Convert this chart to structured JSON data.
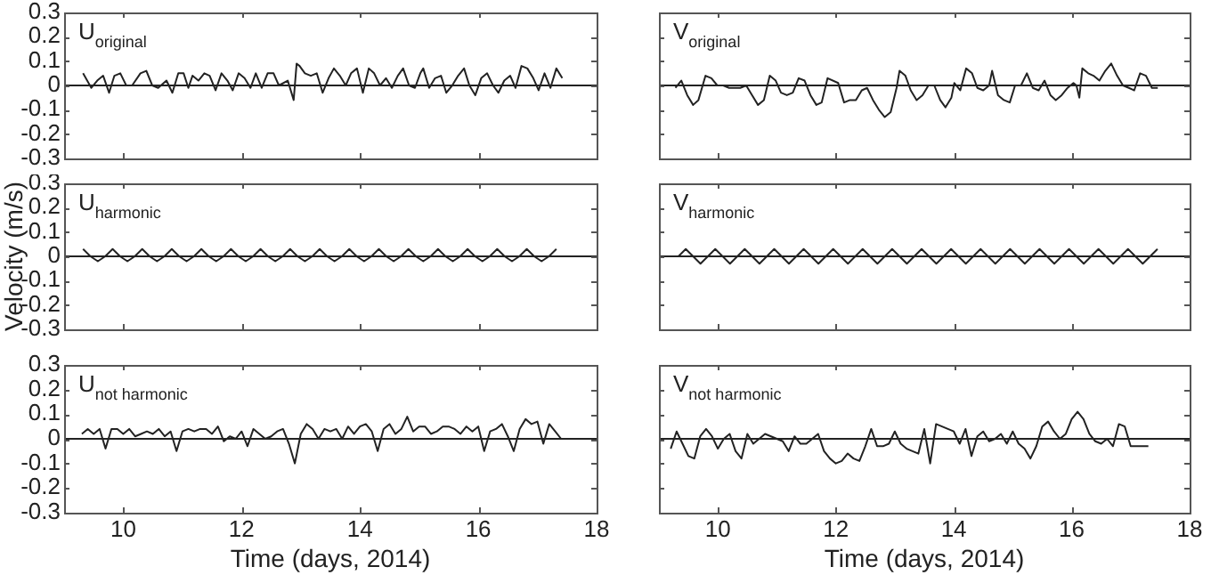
{
  "chart_data": [
    {
      "type": "line",
      "annotations": [
        "U$_{original}$"
      ],
      "tick_labels": "y",
      "xlim": [
        9,
        18
      ],
      "xticks": [
        10,
        12,
        14,
        16,
        18
      ],
      "ylim": [
        -0.3,
        0.3
      ],
      "yticks": [
        -0.3,
        -0.2,
        -0.1,
        0,
        0.1,
        0.2,
        0.3
      ],
      "ref_lines": [
        {
          "axis": "y",
          "value": 0
        }
      ],
      "x": [
        9.32,
        9.46,
        9.56,
        9.66,
        9.76,
        9.85,
        9.95,
        10.05,
        10.15,
        10.29,
        10.39,
        10.49,
        10.59,
        10.73,
        10.83,
        10.93,
        11.02,
        11.1,
        11.17,
        11.27,
        11.37,
        11.46,
        11.56,
        11.66,
        11.76,
        11.85,
        11.95,
        12.05,
        12.15,
        12.24,
        12.34,
        12.44,
        12.54,
        12.63,
        12.78,
        12.88,
        12.93,
        12.98,
        13.07,
        13.17,
        13.27,
        13.37,
        13.47,
        13.56,
        13.66,
        13.76,
        13.85,
        13.95,
        14.05,
        14.15,
        14.24,
        14.34,
        14.44,
        14.54,
        14.64,
        14.73,
        14.83,
        14.93,
        15.02,
        15.07,
        15.17,
        15.27,
        15.37,
        15.46,
        15.56,
        15.66,
        15.76,
        15.85,
        15.95,
        16.05,
        16.15,
        16.25,
        16.34,
        16.44,
        16.54,
        16.63,
        16.73,
        16.83,
        16.93,
        17.02,
        17.12,
        17.22,
        17.32,
        17.42
      ],
      "series": [
        {
          "color": "#222222",
          "values": [
            0.05,
            -0.01,
            0.02,
            0.04,
            -0.03,
            0.04,
            0.05,
            0.0,
            0.0,
            0.05,
            0.06,
            0.0,
            -0.01,
            0.02,
            -0.03,
            0.05,
            0.05,
            -0.01,
            0.04,
            0.02,
            0.05,
            0.04,
            -0.02,
            0.05,
            0.02,
            -0.02,
            0.05,
            0.03,
            -0.01,
            0.05,
            -0.01,
            0.05,
            0.05,
            0.0,
            0.02,
            -0.06,
            0.09,
            0.08,
            0.05,
            0.04,
            0.05,
            -0.03,
            0.03,
            0.07,
            0.04,
            0.0,
            0.05,
            0.07,
            -0.03,
            0.07,
            0.05,
            0.0,
            0.03,
            -0.01,
            0.04,
            0.07,
            0.0,
            -0.01,
            0.05,
            0.07,
            -0.01,
            0.03,
            0.04,
            -0.03,
            0.0,
            0.04,
            0.07,
            0.0,
            -0.04,
            0.03,
            0.05,
            0.0,
            -0.03,
            0.02,
            0.04,
            -0.01,
            0.08,
            0.07,
            0.03,
            -0.02,
            0.05,
            -0.01,
            0.07,
            0.03
          ]
        }
      ]
    },
    {
      "type": "line",
      "annotations": [
        "V$_{original}$"
      ],
      "tick_labels": false,
      "xlim": [
        9,
        18
      ],
      "xticks": [
        10,
        12,
        14,
        16,
        18
      ],
      "ylim": [
        -0.3,
        0.3
      ],
      "yticks": [
        -0.3,
        -0.2,
        -0.1,
        0,
        0.1,
        0.2,
        0.3
      ],
      "ref_lines": [
        {
          "axis": "y",
          "value": 0
        }
      ],
      "x": [
        9.28,
        9.38,
        9.48,
        9.58,
        9.67,
        9.79,
        9.89,
        9.99,
        10.09,
        10.19,
        10.29,
        10.38,
        10.48,
        10.58,
        10.68,
        10.78,
        10.88,
        10.98,
        11.07,
        11.17,
        11.27,
        11.37,
        11.47,
        11.57,
        11.67,
        11.76,
        11.86,
        12.04,
        12.14,
        12.24,
        12.34,
        12.44,
        12.53,
        12.63,
        12.73,
        12.83,
        12.93,
        13.03,
        13.08,
        13.18,
        13.27,
        13.37,
        13.47,
        13.57,
        13.67,
        13.77,
        13.86,
        13.96,
        14.01,
        14.11,
        14.21,
        14.31,
        14.4,
        14.5,
        14.6,
        14.65,
        14.75,
        14.85,
        14.95,
        15.04,
        15.14,
        15.24,
        15.34,
        15.44,
        15.54,
        15.64,
        15.73,
        15.83,
        15.93,
        16.03,
        16.08,
        16.13,
        16.18,
        16.28,
        16.37,
        16.47,
        16.57,
        16.67,
        16.77,
        16.87,
        16.97,
        17.06,
        17.16,
        17.26,
        17.36,
        17.46
      ],
      "series": [
        {
          "color": "#222222",
          "values": [
            -0.01,
            0.02,
            -0.04,
            -0.08,
            -0.06,
            0.04,
            0.03,
            0.0,
            0.0,
            -0.01,
            -0.01,
            -0.01,
            0.0,
            -0.04,
            -0.08,
            -0.06,
            0.04,
            0.02,
            -0.03,
            -0.04,
            -0.03,
            0.03,
            0.02,
            -0.04,
            -0.08,
            -0.07,
            0.03,
            0.01,
            -0.07,
            -0.06,
            -0.06,
            -0.02,
            -0.01,
            -0.06,
            -0.1,
            -0.13,
            -0.11,
            -0.01,
            0.06,
            0.04,
            -0.02,
            -0.06,
            -0.04,
            0.0,
            0.0,
            -0.06,
            -0.09,
            -0.05,
            0.01,
            -0.02,
            0.07,
            0.05,
            -0.01,
            -0.02,
            0.0,
            0.06,
            -0.04,
            -0.06,
            -0.07,
            0.0,
            0.0,
            0.05,
            -0.01,
            -0.02,
            0.02,
            -0.04,
            -0.06,
            -0.04,
            -0.01,
            0.01,
            0.0,
            -0.05,
            0.07,
            0.05,
            0.04,
            0.02,
            0.06,
            0.09,
            0.04,
            0.0,
            -0.01,
            -0.02,
            0.05,
            0.04,
            -0.01,
            -0.01
          ]
        }
      ]
    },
    {
      "type": "line",
      "annotations": [
        "U$_{harmonic}$"
      ],
      "ylabel": "Velocity (m/s)",
      "tick_labels": "y",
      "xlim": [
        9,
        18
      ],
      "xticks": [
        10,
        12,
        14,
        16,
        18
      ],
      "ylim": [
        -0.3,
        0.3
      ],
      "yticks": [
        -0.3,
        -0.2,
        -0.1,
        0,
        0.1,
        0.2,
        0.3
      ],
      "ref_lines": [
        {
          "axis": "y",
          "value": 0
        }
      ],
      "x": [
        9.32,
        9.445,
        9.57,
        9.695,
        9.82,
        9.945,
        10.07,
        10.195,
        10.32,
        10.445,
        10.57,
        10.695,
        10.82,
        10.945,
        11.07,
        11.195,
        11.32,
        11.445,
        11.57,
        11.695,
        11.82,
        11.945,
        12.07,
        12.195,
        12.32,
        12.445,
        12.57,
        12.695,
        12.82,
        12.945,
        13.07,
        13.195,
        13.32,
        13.445,
        13.57,
        13.695,
        13.82,
        13.945,
        14.07,
        14.195,
        14.32,
        14.445,
        14.57,
        14.695,
        14.82,
        14.945,
        15.07,
        15.195,
        15.32,
        15.445,
        15.57,
        15.695,
        15.82,
        15.945,
        16.07,
        16.195,
        16.32,
        16.445,
        16.57,
        16.695,
        16.82,
        16.945,
        17.07,
        17.195,
        17.32
      ],
      "series": [
        {
          "color": "#222222",
          "values": [
            0.03,
            0.0,
            -0.02,
            0.0,
            0.03,
            0.0,
            -0.02,
            0.0,
            0.03,
            0.0,
            -0.02,
            0.0,
            0.03,
            0.0,
            -0.02,
            0.0,
            0.03,
            0.0,
            -0.02,
            0.0,
            0.03,
            0.0,
            -0.02,
            0.0,
            0.03,
            0.0,
            -0.02,
            0.0,
            0.03,
            0.0,
            -0.02,
            0.0,
            0.03,
            0.0,
            -0.02,
            0.0,
            0.03,
            0.0,
            -0.02,
            0.0,
            0.03,
            0.0,
            -0.02,
            0.0,
            0.03,
            0.0,
            -0.02,
            0.0,
            0.03,
            0.0,
            -0.02,
            0.0,
            0.03,
            0.0,
            -0.02,
            0.0,
            0.03,
            0.0,
            -0.02,
            0.0,
            0.03,
            0.0,
            -0.02,
            0.0,
            0.03
          ]
        }
      ]
    },
    {
      "type": "line",
      "annotations": [
        "V$_{harmonic}$"
      ],
      "tick_labels": false,
      "xlim": [
        9,
        18
      ],
      "xticks": [
        10,
        12,
        14,
        16,
        18
      ],
      "ylim": [
        -0.3,
        0.3
      ],
      "yticks": [
        -0.3,
        -0.2,
        -0.1,
        0,
        0.1,
        0.2,
        0.3
      ],
      "ref_lines": [
        {
          "axis": "y",
          "value": 0
        }
      ],
      "x": [
        9.33,
        9.455,
        9.58,
        9.705,
        9.83,
        9.955,
        10.08,
        10.205,
        10.33,
        10.455,
        10.58,
        10.705,
        10.83,
        10.955,
        11.08,
        11.205,
        11.33,
        11.455,
        11.58,
        11.705,
        11.83,
        11.955,
        12.08,
        12.205,
        12.33,
        12.455,
        12.58,
        12.705,
        12.83,
        12.955,
        13.08,
        13.205,
        13.33,
        13.455,
        13.58,
        13.705,
        13.83,
        13.955,
        14.08,
        14.205,
        14.33,
        14.455,
        14.58,
        14.705,
        14.83,
        14.955,
        15.08,
        15.205,
        15.33,
        15.455,
        15.58,
        15.705,
        15.83,
        15.955,
        16.08,
        16.205,
        16.33,
        16.455,
        16.58,
        16.705,
        16.83,
        16.955,
        17.08,
        17.205,
        17.33,
        17.455
      ],
      "series": [
        {
          "color": "#222222",
          "values": [
            0.0,
            0.03,
            0.0,
            -0.03,
            0.0,
            0.03,
            0.0,
            -0.03,
            0.0,
            0.03,
            0.0,
            -0.03,
            0.0,
            0.03,
            0.0,
            -0.03,
            0.0,
            0.03,
            0.0,
            -0.03,
            0.0,
            0.03,
            0.0,
            -0.03,
            0.0,
            0.03,
            0.0,
            -0.03,
            0.0,
            0.03,
            0.0,
            -0.03,
            0.0,
            0.03,
            0.0,
            -0.03,
            0.0,
            0.03,
            0.0,
            -0.03,
            0.0,
            0.03,
            0.0,
            -0.03,
            0.0,
            0.03,
            0.0,
            -0.03,
            0.0,
            0.03,
            0.0,
            -0.03,
            0.0,
            0.03,
            0.0,
            -0.03,
            0.0,
            0.03,
            0.0,
            -0.03,
            0.0,
            0.03,
            0.0,
            -0.03,
            0.0,
            0.03
          ]
        }
      ]
    },
    {
      "type": "line",
      "annotations": [
        "U$_{not harmonic}$"
      ],
      "xlabel": "Time (days, 2014)",
      "xlim": [
        9,
        18
      ],
      "xticks": [
        10,
        12,
        14,
        16,
        18
      ],
      "ylim": [
        -0.3,
        0.3
      ],
      "yticks": [
        -0.3,
        -0.2,
        -0.1,
        0,
        0.1,
        0.2,
        0.3
      ],
      "ref_lines": [
        {
          "axis": "y",
          "value": 0
        }
      ],
      "x": [
        9.3,
        9.4,
        9.5,
        9.6,
        9.7,
        9.8,
        9.9,
        10.0,
        10.1,
        10.2,
        10.3,
        10.4,
        10.5,
        10.6,
        10.7,
        10.8,
        10.9,
        11.0,
        11.1,
        11.2,
        11.3,
        11.4,
        11.5,
        11.6,
        11.7,
        11.8,
        11.9,
        12.0,
        12.1,
        12.2,
        12.3,
        12.4,
        12.5,
        12.6,
        12.7,
        12.8,
        12.9,
        13.0,
        13.1,
        13.2,
        13.3,
        13.4,
        13.5,
        13.6,
        13.7,
        13.8,
        13.9,
        14.0,
        14.1,
        14.2,
        14.3,
        14.4,
        14.5,
        14.6,
        14.7,
        14.8,
        14.9,
        15.0,
        15.1,
        15.2,
        15.3,
        15.4,
        15.5,
        15.6,
        15.7,
        15.8,
        15.9,
        16.0,
        16.1,
        16.2,
        16.3,
        16.4,
        16.5,
        16.6,
        16.7,
        16.8,
        16.9,
        17.0,
        17.1,
        17.2,
        17.3,
        17.4
      ],
      "series": [
        {
          "color": "#222222",
          "values": [
            0.02,
            0.04,
            0.02,
            0.04,
            -0.04,
            0.04,
            0.04,
            0.02,
            0.04,
            0.01,
            0.02,
            0.03,
            0.02,
            0.04,
            0.01,
            0.03,
            -0.05,
            0.03,
            0.04,
            0.03,
            0.04,
            0.04,
            0.02,
            0.05,
            -0.01,
            0.01,
            0.0,
            0.03,
            -0.03,
            0.04,
            0.02,
            0.0,
            0.01,
            0.03,
            0.04,
            -0.02,
            -0.1,
            0.02,
            0.06,
            0.04,
            0.0,
            0.04,
            0.03,
            0.04,
            0.0,
            0.05,
            0.02,
            0.05,
            0.06,
            0.03,
            -0.05,
            0.04,
            0.06,
            0.02,
            0.04,
            0.09,
            0.03,
            0.05,
            0.05,
            0.02,
            0.03,
            0.05,
            0.05,
            0.04,
            0.02,
            0.05,
            0.03,
            0.05,
            -0.05,
            0.03,
            0.04,
            0.06,
            0.01,
            -0.05,
            0.04,
            0.08,
            0.06,
            0.07,
            -0.02,
            0.06,
            0.03,
            0.0
          ]
        }
      ]
    },
    {
      "type": "line",
      "annotations": [
        "V$_{not harmonic}$"
      ],
      "xlabel": "Time (days, 2014)",
      "tick_labels": "x",
      "xlim": [
        9,
        18
      ],
      "xticks": [
        10,
        12,
        14,
        16,
        18
      ],
      "ylim": [
        -0.3,
        0.3
      ],
      "yticks": [
        -0.3,
        -0.2,
        -0.1,
        0,
        0.1,
        0.2,
        0.3
      ],
      "ref_lines": [
        {
          "axis": "y",
          "value": 0
        }
      ],
      "x": [
        9.2,
        9.3,
        9.4,
        9.5,
        9.6,
        9.7,
        9.8,
        9.9,
        10.0,
        10.1,
        10.2,
        10.3,
        10.4,
        10.5,
        10.6,
        10.7,
        10.8,
        10.9,
        11.0,
        11.1,
        11.2,
        11.3,
        11.4,
        11.5,
        11.6,
        11.7,
        11.8,
        11.9,
        12.0,
        12.1,
        12.2,
        12.3,
        12.4,
        12.5,
        12.6,
        12.7,
        12.8,
        12.9,
        13.0,
        13.1,
        13.2,
        13.3,
        13.4,
        13.5,
        13.6,
        13.7,
        13.8,
        13.9,
        14.0,
        14.1,
        14.2,
        14.3,
        14.4,
        14.5,
        14.6,
        14.7,
        14.8,
        14.9,
        15.0,
        15.1,
        15.2,
        15.3,
        15.4,
        15.5,
        15.6,
        15.7,
        15.8,
        15.9,
        16.0,
        16.1,
        16.2,
        16.3,
        16.4,
        16.5,
        16.6,
        16.7,
        16.8,
        16.9,
        17.0,
        17.1,
        17.2,
        17.3
      ],
      "series": [
        {
          "color": "#222222",
          "values": [
            -0.04,
            0.03,
            -0.02,
            -0.07,
            -0.08,
            0.01,
            0.04,
            0.01,
            -0.04,
            0.0,
            0.02,
            -0.05,
            -0.08,
            0.02,
            -0.02,
            0.0,
            0.02,
            0.01,
            0.0,
            -0.01,
            -0.05,
            0.01,
            -0.02,
            -0.02,
            0.0,
            0.02,
            -0.05,
            -0.08,
            -0.1,
            -0.09,
            -0.06,
            -0.08,
            -0.09,
            -0.03,
            0.04,
            -0.03,
            -0.03,
            -0.02,
            0.03,
            -0.02,
            -0.04,
            -0.05,
            -0.06,
            0.04,
            -0.1,
            0.06,
            0.05,
            0.04,
            0.03,
            -0.02,
            0.04,
            -0.07,
            0.01,
            0.03,
            -0.01,
            0.0,
            0.02,
            -0.02,
            0.03,
            -0.02,
            -0.04,
            -0.08,
            -0.03,
            0.05,
            0.07,
            0.03,
            0.0,
            0.02,
            0.08,
            0.11,
            0.08,
            0.02,
            -0.01,
            -0.02,
            0.0,
            -0.03,
            0.06,
            0.05,
            -0.03,
            -0.03,
            -0.03,
            -0.03
          ]
        }
      ]
    }
  ]
}
